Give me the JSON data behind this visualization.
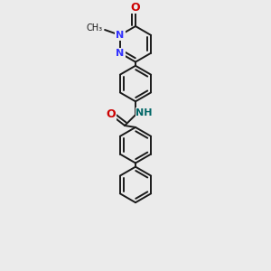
{
  "bg_color": "#ebebeb",
  "bond_color": "#1a1a1a",
  "N_color": "#3333ff",
  "O_color": "#cc0000",
  "NH_color": "#006666",
  "lw": 1.4,
  "figsize": [
    3.0,
    3.0
  ],
  "dpi": 100,
  "r": 0.38,
  "xlim": [
    -0.5,
    2.5
  ],
  "ylim": [
    -2.8,
    2.8
  ]
}
